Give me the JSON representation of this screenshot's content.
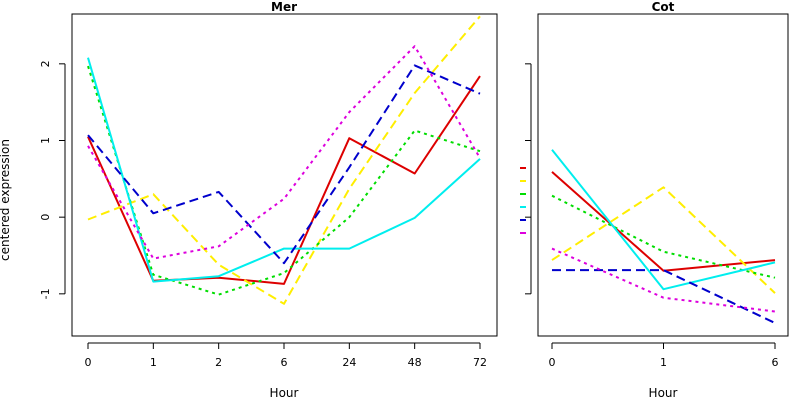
{
  "colors": {
    "red": "#dd0000",
    "yellow": "#ffee00",
    "green": "#00dd00",
    "cyan": "#00eeee",
    "blue": "#0000cc",
    "magenta": "#dd00dd"
  },
  "chart_data": [
    {
      "type": "line",
      "title": "Mer",
      "xlabel": "Hour",
      "ylabel": "centered expression",
      "categories": [
        "0",
        "1",
        "2",
        "6",
        "24",
        "48",
        "72"
      ],
      "yticks": [
        -1,
        0,
        1,
        2
      ],
      "ylim": [
        -1.55,
        2.65
      ],
      "grid": false,
      "series": [
        {
          "color": "#dd0000",
          "dash": "solid",
          "values": [
            1.05,
            -0.83,
            -0.79,
            -0.87,
            1.03,
            0.57,
            1.84
          ]
        },
        {
          "color": "#ffee00",
          "dash": "dashed",
          "values": [
            -0.03,
            0.3,
            -0.62,
            -1.13,
            0.37,
            1.62,
            2.62
          ]
        },
        {
          "color": "#00dd00",
          "dash": "dotted",
          "values": [
            1.97,
            -0.75,
            -1.01,
            -0.73,
            0.0,
            1.13,
            0.86
          ]
        },
        {
          "color": "#00eeee",
          "dash": "solid",
          "values": [
            2.08,
            -0.84,
            -0.77,
            -0.41,
            -0.41,
            -0.01,
            0.76
          ]
        },
        {
          "color": "#0000cc",
          "dash": "dashed",
          "values": [
            1.07,
            0.05,
            0.33,
            -0.6,
            0.65,
            1.98,
            1.61
          ]
        },
        {
          "color": "#dd00dd",
          "dash": "dotted",
          "values": [
            0.93,
            -0.54,
            -0.38,
            0.24,
            1.37,
            2.23,
            0.77
          ]
        }
      ]
    },
    {
      "type": "line",
      "title": "Cot",
      "xlabel": "Hour",
      "categories": [
        "0",
        "1",
        "6"
      ],
      "yticks": [
        -1,
        0,
        1,
        2
      ],
      "ylim": [
        -1.55,
        2.65
      ],
      "grid": false,
      "series": [
        {
          "color": "#dd0000",
          "dash": "solid",
          "values": [
            0.59,
            -0.7,
            -0.56
          ]
        },
        {
          "color": "#ffee00",
          "dash": "dashed",
          "values": [
            -0.56,
            0.39,
            -0.99
          ]
        },
        {
          "color": "#00dd00",
          "dash": "dotted",
          "values": [
            0.28,
            -0.45,
            -0.79
          ]
        },
        {
          "color": "#00eeee",
          "dash": "solid",
          "values": [
            0.88,
            -0.94,
            -0.59
          ]
        },
        {
          "color": "#0000cc",
          "dash": "dashed",
          "values": [
            -0.69,
            -0.69,
            -1.38
          ]
        },
        {
          "color": "#dd00dd",
          "dash": "dotted",
          "values": [
            -0.41,
            -1.05,
            -1.23
          ]
        }
      ]
    }
  ]
}
